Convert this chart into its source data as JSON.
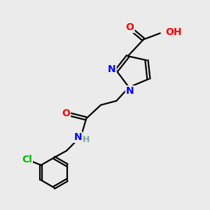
{
  "background_color": "#ebebeb",
  "bond_color": "#000000",
  "atom_colors": {
    "O": "#ff0000",
    "N": "#0000ff",
    "Cl": "#00bb00",
    "H": "#7fa8a8",
    "C": "#000000"
  },
  "figsize": [
    3.0,
    3.0
  ],
  "dpi": 100
}
